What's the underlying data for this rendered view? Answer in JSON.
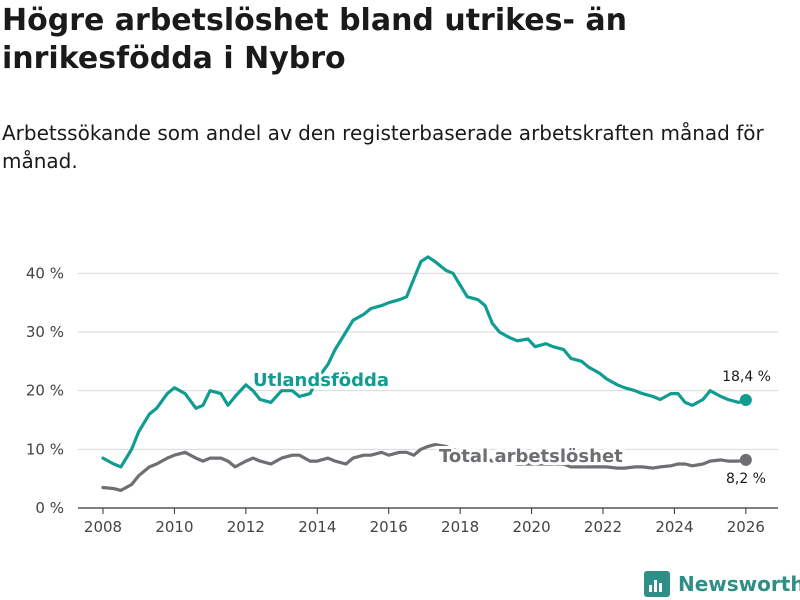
{
  "title": "Högre arbetslöshet bland utrikes- än inrikesfödda i Nybro",
  "subtitle": "Arbetssökande som andel av den registerbaserade arbetskraften månad för månad.",
  "brand": "Newsworthy",
  "colors": {
    "utlandsfodda": "#109c91",
    "total": "#6e6e73",
    "grid": "#d9d9d9",
    "axis": "#333333"
  },
  "chart_data": {
    "type": "line",
    "title": "Högre arbetslöshet bland utrikes- än inrikesfödda i Nybro",
    "subtitle": "Arbetssökande som andel av den registerbaserade arbetskraften månad för månad.",
    "xlabel": "",
    "ylabel": "",
    "xlim": [
      2007.3,
      2026.9
    ],
    "ylim": [
      0,
      45
    ],
    "x_ticks": [
      2008,
      2010,
      2012,
      2014,
      2016,
      2018,
      2020,
      2022,
      2024,
      2026
    ],
    "x_tick_labels": [
      "2008",
      "2010",
      "2012",
      "2014",
      "2016",
      "2018",
      "2020",
      "2022",
      "2024",
      "2026"
    ],
    "y_ticks": [
      0,
      10,
      20,
      30,
      40
    ],
    "y_tick_labels": [
      "0 %",
      "10 %",
      "20 %",
      "30 %",
      "40 %"
    ],
    "grid": true,
    "series": [
      {
        "name": "Utlandsfödda",
        "label": "Utlandsfödda",
        "end_label": "18,4 %",
        "x": [
          2008.0,
          2008.3,
          2008.5,
          2008.8,
          2009.0,
          2009.3,
          2009.5,
          2009.8,
          2010.0,
          2010.3,
          2010.6,
          2010.8,
          2011.0,
          2011.3,
          2011.5,
          2011.7,
          2012.0,
          2012.2,
          2012.4,
          2012.7,
          2013.0,
          2013.3,
          2013.5,
          2013.8,
          2014.0,
          2014.3,
          2014.5,
          2014.8,
          2015.0,
          2015.3,
          2015.5,
          2015.8,
          2016.0,
          2016.3,
          2016.5,
          2016.7,
          2016.9,
          2017.1,
          2017.3,
          2017.6,
          2017.8,
          2018.0,
          2018.2,
          2018.5,
          2018.7,
          2018.9,
          2019.1,
          2019.4,
          2019.6,
          2019.9,
          2020.1,
          2020.4,
          2020.6,
          2020.9,
          2021.1,
          2021.4,
          2021.6,
          2021.9,
          2022.1,
          2022.4,
          2022.6,
          2022.9,
          2023.1,
          2023.4,
          2023.6,
          2023.9,
          2024.1,
          2024.3,
          2024.5,
          2024.8,
          2025.0,
          2025.3,
          2025.5,
          2025.8,
          2026.0
        ],
        "values": [
          8.5,
          7.5,
          7.0,
          10.0,
          13.0,
          16.0,
          17.0,
          19.5,
          20.5,
          19.5,
          17.0,
          17.5,
          20.0,
          19.5,
          17.5,
          19.0,
          21.0,
          20.0,
          18.5,
          18.0,
          20.0,
          20.0,
          19.0,
          19.5,
          22.0,
          24.5,
          27.0,
          30.0,
          32.0,
          33.0,
          34.0,
          34.5,
          35.0,
          35.5,
          36.0,
          39.0,
          42.0,
          42.8,
          42.0,
          40.5,
          40.0,
          38.0,
          36.0,
          35.5,
          34.5,
          31.5,
          30.0,
          29.0,
          28.5,
          28.8,
          27.5,
          28.0,
          27.5,
          27.0,
          25.5,
          25.0,
          24.0,
          23.0,
          22.0,
          21.0,
          20.5,
          20.0,
          19.5,
          19.0,
          18.5,
          19.5,
          19.5,
          18.0,
          17.5,
          18.5,
          20.0,
          19.0,
          18.5,
          18.0,
          18.4
        ]
      },
      {
        "name": "Total arbetslöshet",
        "label": "Total arbetslöshet",
        "end_label": "8,2 %",
        "x": [
          2008.0,
          2008.3,
          2008.5,
          2008.8,
          2009.0,
          2009.3,
          2009.5,
          2009.8,
          2010.0,
          2010.3,
          2010.6,
          2010.8,
          2011.0,
          2011.3,
          2011.5,
          2011.7,
          2012.0,
          2012.2,
          2012.4,
          2012.7,
          2013.0,
          2013.3,
          2013.5,
          2013.8,
          2014.0,
          2014.3,
          2014.5,
          2014.8,
          2015.0,
          2015.3,
          2015.5,
          2015.8,
          2016.0,
          2016.3,
          2016.5,
          2016.7,
          2016.9,
          2017.1,
          2017.3,
          2017.6,
          2017.8,
          2018.0,
          2018.2,
          2018.5,
          2018.7,
          2018.9,
          2019.1,
          2019.4,
          2019.6,
          2019.9,
          2020.1,
          2020.4,
          2020.6,
          2020.9,
          2021.1,
          2021.4,
          2021.6,
          2021.9,
          2022.1,
          2022.4,
          2022.6,
          2022.9,
          2023.1,
          2023.4,
          2023.6,
          2023.9,
          2024.1,
          2024.3,
          2024.5,
          2024.8,
          2025.0,
          2025.3,
          2025.5,
          2025.8,
          2026.0
        ],
        "values": [
          3.5,
          3.3,
          3.0,
          4.0,
          5.5,
          7.0,
          7.5,
          8.5,
          9.0,
          9.5,
          8.5,
          8.0,
          8.5,
          8.5,
          8.0,
          7.0,
          8.0,
          8.5,
          8.0,
          7.5,
          8.5,
          9.0,
          9.0,
          8.0,
          8.0,
          8.5,
          8.0,
          7.5,
          8.5,
          9.0,
          9.0,
          9.5,
          9.0,
          9.5,
          9.5,
          9.0,
          10.0,
          10.5,
          10.8,
          10.5,
          10.0,
          9.5,
          9.0,
          9.0,
          8.5,
          8.0,
          8.0,
          8.0,
          7.5,
          7.5,
          7.5,
          7.5,
          7.5,
          7.5,
          7.0,
          7.0,
          7.0,
          7.0,
          7.0,
          6.8,
          6.8,
          7.0,
          7.0,
          6.8,
          7.0,
          7.2,
          7.5,
          7.5,
          7.2,
          7.5,
          8.0,
          8.2,
          8.0,
          8.0,
          8.2
        ]
      }
    ]
  }
}
